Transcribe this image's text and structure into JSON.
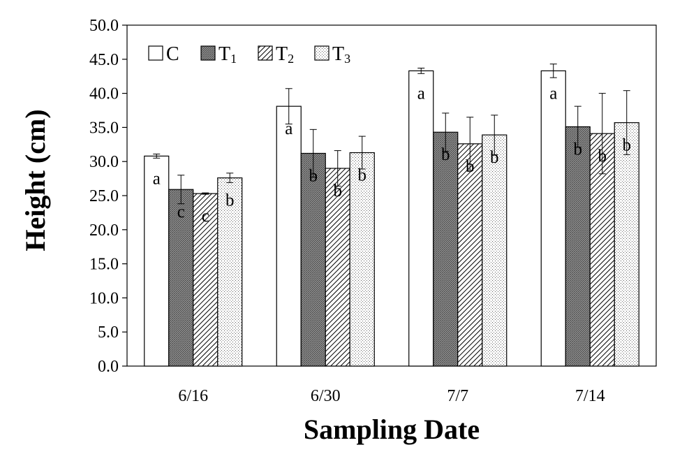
{
  "chart_data": {
    "type": "bar",
    "xlabel": "Sampling Date",
    "ylabel": "Height (cm)",
    "ylim": [
      0,
      50
    ],
    "ytick_step": 5,
    "ytick_labels": [
      "0.0",
      "5.0",
      "10.0",
      "15.0",
      "20.0",
      "25.0",
      "30.0",
      "35.0",
      "40.0",
      "45.0",
      "50.0"
    ],
    "categories": [
      "6/16",
      "6/30",
      "7/7",
      "7/14"
    ],
    "legend_position": "top-left",
    "grid": false,
    "series": [
      {
        "name": "C",
        "pattern": "white",
        "values": [
          30.8,
          38.1,
          43.3,
          43.3
        ],
        "errors": [
          0.3,
          2.6,
          0.4,
          1.0
        ],
        "letters": [
          "a",
          "a",
          "a",
          "a"
        ]
      },
      {
        "name": "T1",
        "pattern": "dark-gray",
        "values": [
          25.9,
          31.2,
          34.3,
          35.1
        ],
        "errors": [
          2.1,
          3.5,
          2.8,
          3.0
        ],
        "letters": [
          "c",
          "b",
          "b",
          "b"
        ]
      },
      {
        "name": "T2",
        "pattern": "hatch",
        "values": [
          25.3,
          29.0,
          32.6,
          34.1
        ],
        "errors": [
          0.1,
          2.6,
          3.9,
          5.9
        ],
        "letters": [
          "c",
          "b",
          "b",
          "b"
        ]
      },
      {
        "name": "T3",
        "pattern": "dots",
        "values": [
          27.6,
          31.3,
          33.9,
          35.7
        ],
        "errors": [
          0.7,
          2.4,
          2.9,
          4.7
        ],
        "letters": [
          "b",
          "b",
          "b",
          "b"
        ]
      }
    ]
  }
}
